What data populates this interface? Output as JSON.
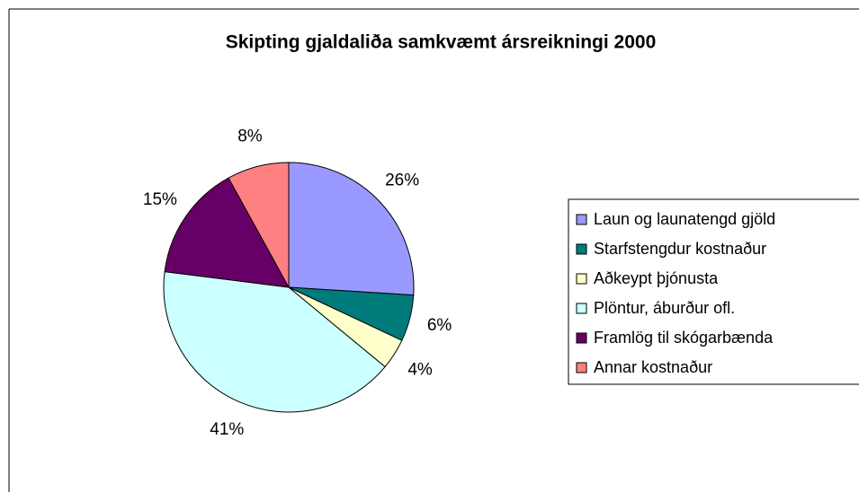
{
  "chart_data": {
    "type": "pie",
    "title": "Skipting gjaldaliða samkvæmt ársreikningi 2000",
    "categories": [
      "Laun og launatengd gjöld",
      "Starfstengdur kostnaður",
      "Aðkeypt þjónusta",
      "Plöntur, áburður ofl.",
      "Framlög til skógarbænda",
      "Annar kostnaður"
    ],
    "values": [
      26,
      6,
      4,
      41,
      15,
      8
    ],
    "value_labels": [
      "26%",
      "6%",
      "4%",
      "41%",
      "15%",
      "8%"
    ],
    "colors": [
      "#9999ff",
      "#007b7b",
      "#ffffcc",
      "#ccffff",
      "#660066",
      "#ff8080"
    ],
    "legend": "right"
  }
}
